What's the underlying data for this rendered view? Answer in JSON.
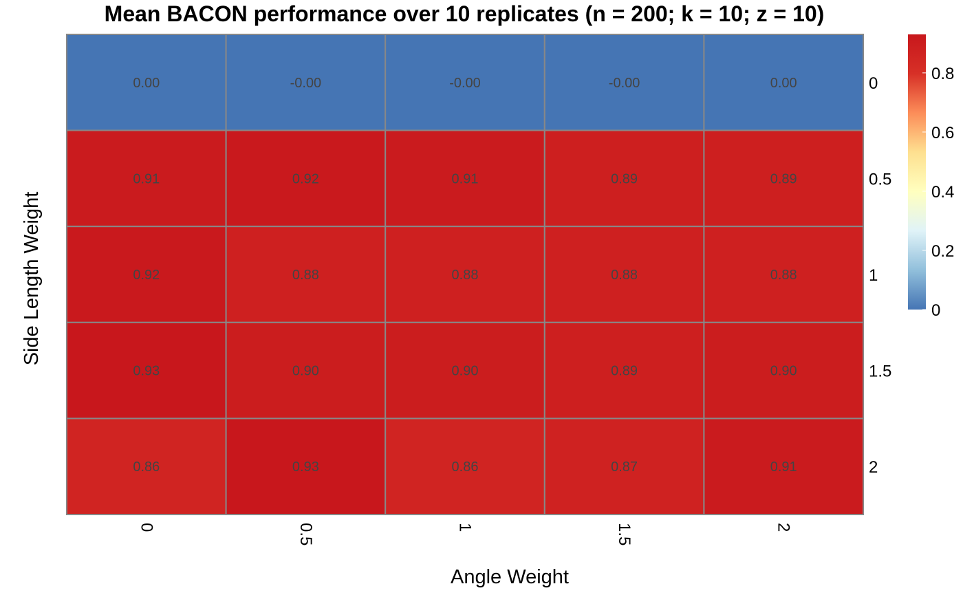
{
  "chart_data": {
    "type": "heatmap",
    "title": "Mean BACON performance over 10 replicates (n = 200; k = 10; z = 10)",
    "xlabel": "Angle Weight",
    "ylabel": "Side Length Weight",
    "x_categories": [
      "0",
      "0.5",
      "1",
      "1.5",
      "2"
    ],
    "y_categories": [
      "0",
      "0.5",
      "1",
      "1.5",
      "2"
    ],
    "values": [
      [
        0.0,
        -0.0,
        -0.0,
        -0.0,
        0.0
      ],
      [
        0.91,
        0.92,
        0.91,
        0.89,
        0.89
      ],
      [
        0.92,
        0.88,
        0.88,
        0.88,
        0.88
      ],
      [
        0.93,
        0.9,
        0.9,
        0.89,
        0.9
      ],
      [
        0.86,
        0.93,
        0.86,
        0.87,
        0.91
      ]
    ],
    "labels": [
      [
        "0.00",
        "-0.00",
        "-0.00",
        "-0.00",
        "0.00"
      ],
      [
        "0.91",
        "0.92",
        "0.91",
        "0.89",
        "0.89"
      ],
      [
        "0.92",
        "0.88",
        "0.88",
        "0.88",
        "0.88"
      ],
      [
        "0.93",
        "0.90",
        "0.90",
        "0.89",
        "0.90"
      ],
      [
        "0.86",
        "0.93",
        "0.86",
        "0.87",
        "0.91"
      ]
    ],
    "color_range": [
      0,
      0.93
    ],
    "colorbar_ticks": [
      "0",
      "0.2",
      "0.4",
      "0.6",
      "0.8"
    ],
    "colorbar_tick_values": [
      0,
      0.2,
      0.4,
      0.6,
      0.8
    ],
    "palette": [
      "#4575b4",
      "#91bfdb",
      "#e0f3f8",
      "#ffffbf",
      "#fee090",
      "#fc8d59",
      "#d73027",
      "#c8171c"
    ],
    "grid_color": "#888888",
    "legend_placement": "right"
  }
}
